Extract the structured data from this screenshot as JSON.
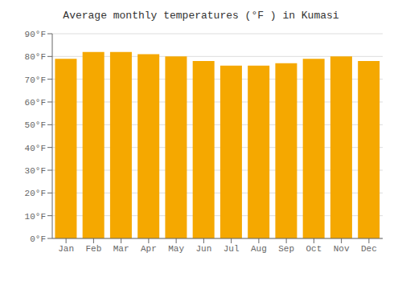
{
  "chart_data": {
    "type": "bar",
    "title": "Average monthly temperatures (°F ) in Kumasi",
    "categories": [
      "Jan",
      "Feb",
      "Mar",
      "Apr",
      "May",
      "Jun",
      "Jul",
      "Aug",
      "Sep",
      "Oct",
      "Nov",
      "Dec"
    ],
    "values": [
      79,
      82,
      82,
      81,
      80,
      78,
      76,
      76,
      77,
      79,
      80,
      78
    ],
    "color": "#F5A800",
    "ylim": [
      0,
      90
    ],
    "yticks": [
      {
        "value": 0,
        "label": "0°F"
      },
      {
        "value": 10,
        "label": "10°F"
      },
      {
        "value": 20,
        "label": "20°F"
      },
      {
        "value": 30,
        "label": "30°F"
      },
      {
        "value": 40,
        "label": "40°F"
      },
      {
        "value": 50,
        "label": "50°F"
      },
      {
        "value": 60,
        "label": "60°F"
      },
      {
        "value": 70,
        "label": "70°F"
      },
      {
        "value": 80,
        "label": "80°F"
      },
      {
        "value": 90,
        "label": "90°F"
      }
    ],
    "grid": true
  }
}
